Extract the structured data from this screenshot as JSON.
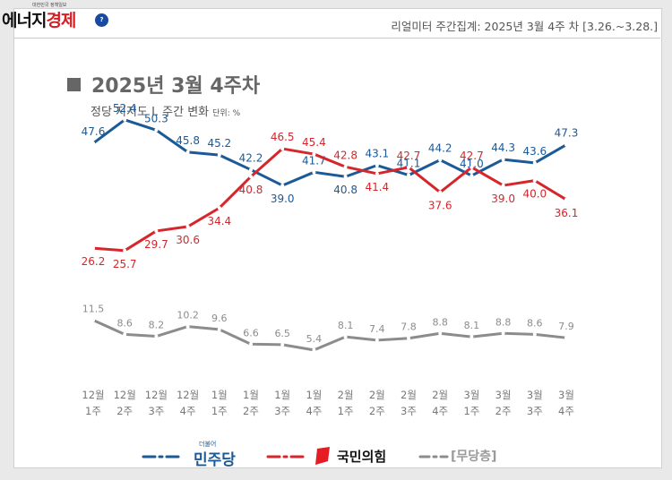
{
  "header": {
    "logo": {
      "main_black": "에너지",
      "main_red": "경제",
      "tagline": "대한민국 정책일보",
      "badge": "?"
    },
    "title": "리얼미터 주간집계: 2025년 3월 4주 차 [3.26.~3.28.]"
  },
  "chart_data": {
    "type": "line",
    "title": "2025년 3월 4주차",
    "subtitle": "정당 지지도 Ⅰ. 주간 변화",
    "unit": "단위: %",
    "categories": [
      [
        "12월",
        "1주"
      ],
      [
        "12월",
        "2주"
      ],
      [
        "12월",
        "3주"
      ],
      [
        "12월",
        "4주"
      ],
      [
        "1월",
        "1주"
      ],
      [
        "1월",
        "2주"
      ],
      [
        "1월",
        "3주"
      ],
      [
        "1월",
        "4주"
      ],
      [
        "2월",
        "1주"
      ],
      [
        "2월",
        "2주"
      ],
      [
        "2월",
        "3주"
      ],
      [
        "2월",
        "4주"
      ],
      [
        "3월",
        "1주"
      ],
      [
        "3월",
        "2주"
      ],
      [
        "3월",
        "3주"
      ],
      [
        "3월",
        "4주"
      ]
    ],
    "series": [
      {
        "name": "민주당",
        "small": "더불어",
        "color": "#1b5a96",
        "values": [
          47.6,
          52.4,
          50.3,
          45.8,
          45.2,
          42.2,
          39.0,
          41.7,
          40.8,
          43.1,
          41.1,
          44.2,
          41.0,
          44.3,
          43.6,
          47.3
        ]
      },
      {
        "name": "국민의힘",
        "color": "#d6262c",
        "values": [
          26.2,
          25.7,
          29.7,
          30.6,
          34.4,
          40.8,
          46.5,
          45.4,
          42.8,
          41.4,
          42.7,
          37.6,
          42.7,
          39.0,
          40.0,
          36.1
        ]
      },
      {
        "name": "[무당층]",
        "color": "#8c8c8c",
        "values": [
          11.5,
          8.6,
          8.2,
          10.2,
          9.6,
          6.6,
          6.5,
          5.4,
          8.1,
          7.4,
          7.8,
          8.8,
          8.1,
          8.8,
          8.6,
          7.9
        ]
      }
    ],
    "ylim": [
      0,
      55
    ],
    "legend_position": "bottom"
  }
}
